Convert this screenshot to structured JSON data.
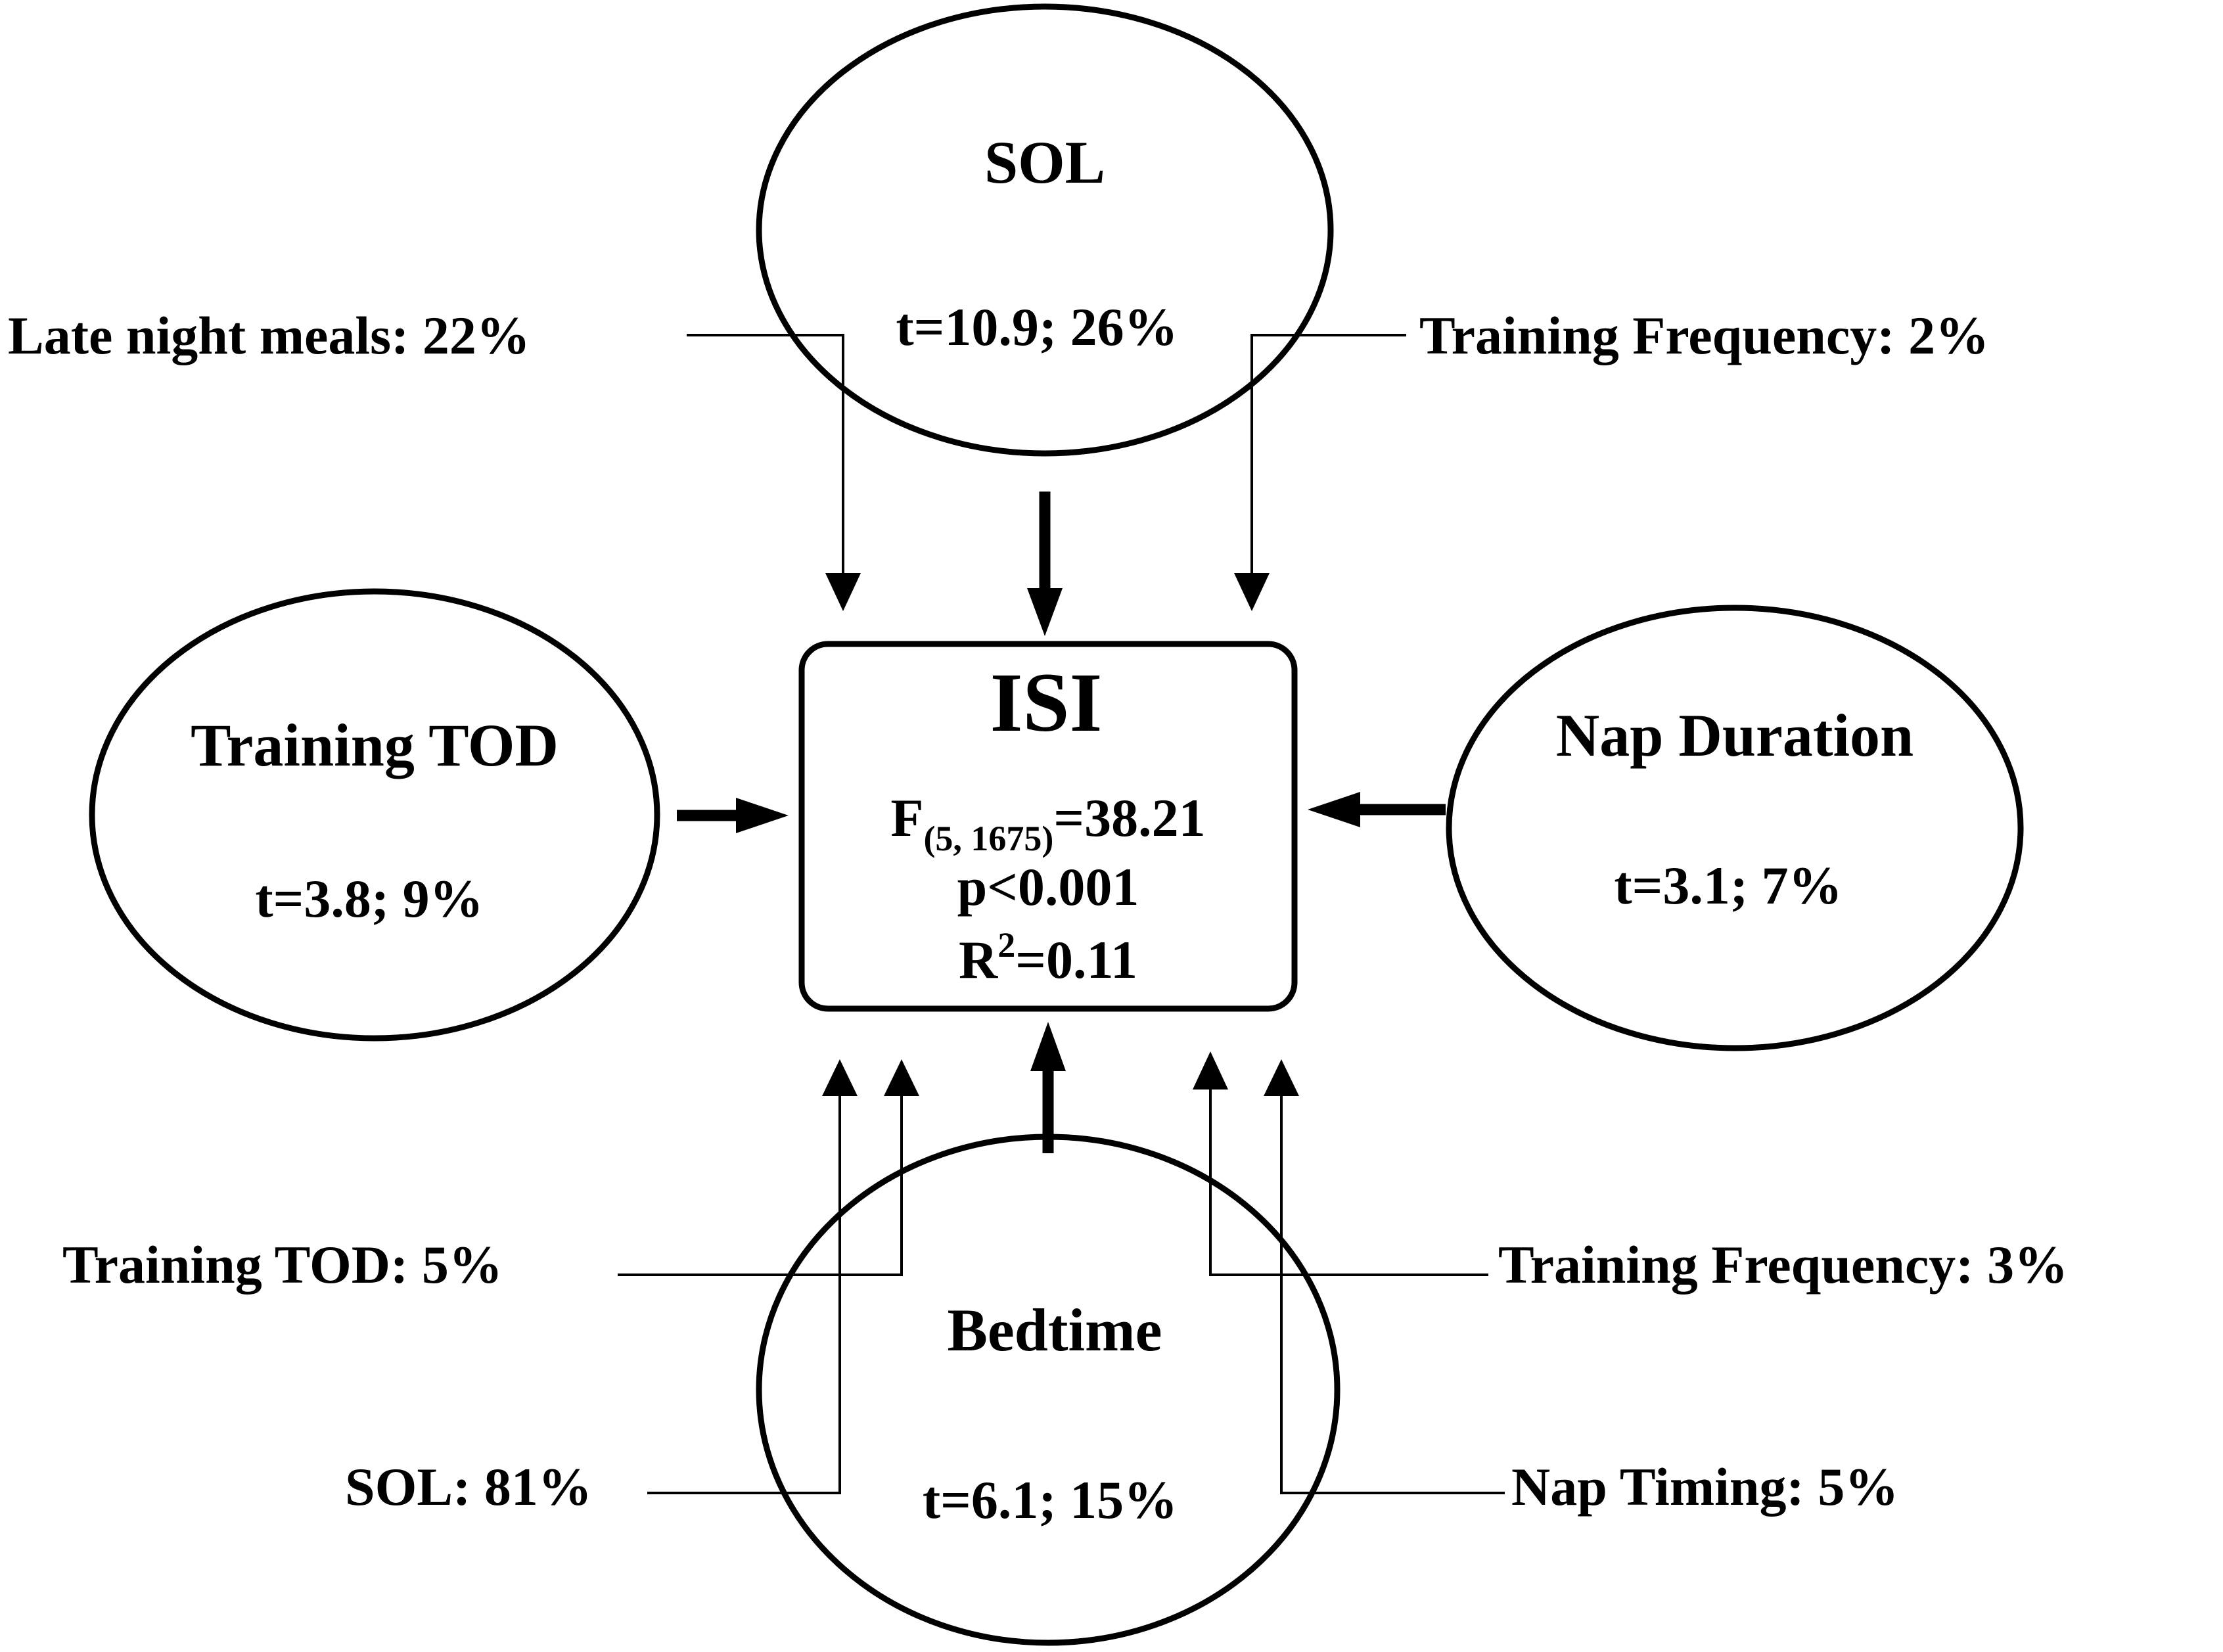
{
  "nodes": {
    "sol": {
      "title": "SOL",
      "stat": "t=10.9; 26%"
    },
    "training_tod": {
      "title": "Training TOD",
      "stat": "t=3.8; 9%"
    },
    "nap_duration": {
      "title": "Nap Duration",
      "stat": "t=3.1; 7%"
    },
    "bedtime": {
      "title": "Bedtime",
      "stat": "t=6.1; 15%"
    }
  },
  "outcome": {
    "title": "ISI",
    "f_prefix": "F",
    "f_df": "(5, 1675)",
    "f_value": "=38.21",
    "p": "p<0.001",
    "r_prefix": "R",
    "r_sup": "2",
    "r_value": "=0.11"
  },
  "side_labels": {
    "late_night_meals": "Late night meals: 22%",
    "training_frequency_top": "Training Frequency: 2%",
    "training_tod_bottom": "Training TOD: 5%",
    "training_frequency_bottom": "Training Frequency: 3%",
    "sol_bottom": "SOL: 81%",
    "nap_timing": "Nap Timing: 5%"
  },
  "colors": {
    "ink": "#000000",
    "background": "#ffffff"
  }
}
